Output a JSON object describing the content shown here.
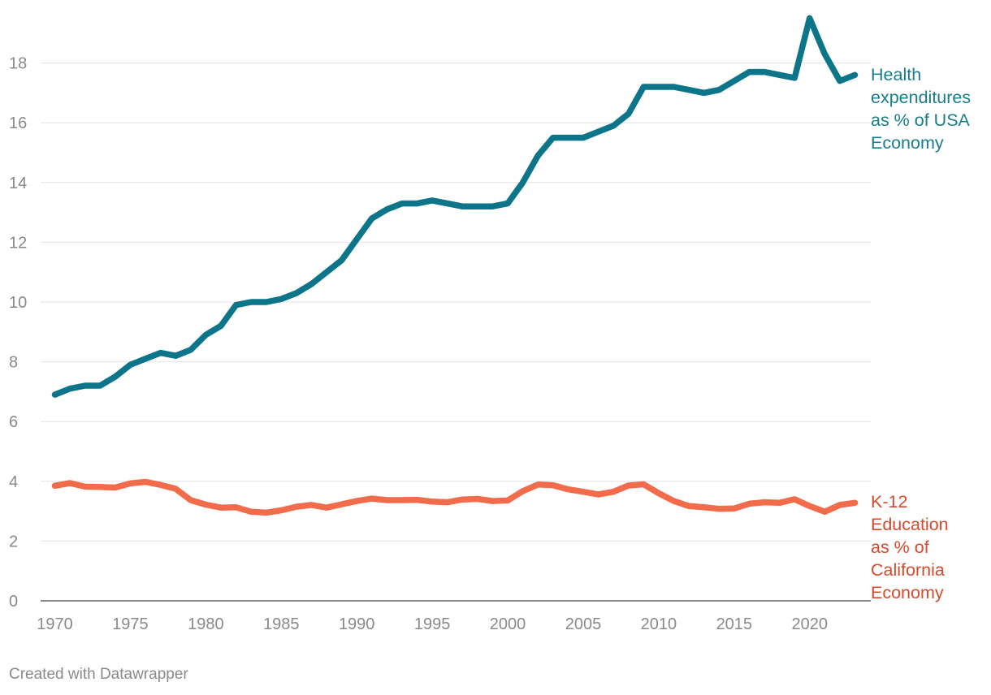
{
  "chart_data": {
    "type": "line",
    "title": "",
    "xlabel": "",
    "ylabel": "",
    "xlim": [
      1970,
      2023
    ],
    "ylim": [
      0,
      19.5
    ],
    "grid": true,
    "legend": "direct labels at right end of each line",
    "y_ticks": [
      0,
      2,
      4,
      6,
      8,
      10,
      12,
      14,
      16,
      18
    ],
    "x_ticks": [
      1970,
      1975,
      1980,
      1985,
      1990,
      1995,
      2000,
      2005,
      2010,
      2015,
      2020
    ],
    "x": [
      1970,
      1971,
      1972,
      1973,
      1974,
      1975,
      1976,
      1977,
      1978,
      1979,
      1980,
      1981,
      1982,
      1983,
      1984,
      1985,
      1986,
      1987,
      1988,
      1989,
      1990,
      1991,
      1992,
      1993,
      1994,
      1995,
      1996,
      1997,
      1998,
      1999,
      2000,
      2001,
      2002,
      2003,
      2004,
      2005,
      2006,
      2007,
      2008,
      2009,
      2010,
      2011,
      2012,
      2013,
      2014,
      2015,
      2016,
      2017,
      2018,
      2019,
      2020,
      2021,
      2022,
      2023
    ],
    "series": [
      {
        "name": "health",
        "label_lines": [
          "Health",
          "expenditures",
          "as % of USA",
          "Economy"
        ],
        "color": "#0c7589",
        "label_color": "#1a7d8e",
        "values": [
          6.9,
          7.1,
          7.2,
          7.2,
          7.5,
          7.9,
          8.1,
          8.3,
          8.2,
          8.4,
          8.9,
          9.2,
          9.9,
          10.0,
          10.0,
          10.1,
          10.3,
          10.6,
          11.0,
          11.4,
          12.1,
          12.8,
          13.1,
          13.3,
          13.3,
          13.4,
          13.3,
          13.2,
          13.2,
          13.2,
          13.3,
          14.0,
          14.9,
          15.5,
          15.5,
          15.5,
          15.7,
          15.9,
          16.3,
          17.2,
          17.2,
          17.2,
          17.1,
          17.0,
          17.1,
          17.4,
          17.7,
          17.7,
          17.6,
          17.5,
          19.5,
          18.3,
          17.4,
          17.6
        ]
      },
      {
        "name": "k12",
        "label_lines": [
          "K-12",
          "Education",
          "as % of",
          "California",
          "Economy"
        ],
        "color": "#f26b4b",
        "label_color": "#d84a2b",
        "values": [
          3.85,
          3.94,
          3.82,
          3.81,
          3.79,
          3.93,
          3.98,
          3.88,
          3.75,
          3.37,
          3.22,
          3.12,
          3.13,
          2.98,
          2.95,
          3.03,
          3.15,
          3.21,
          3.12,
          3.23,
          3.34,
          3.42,
          3.37,
          3.37,
          3.38,
          3.32,
          3.3,
          3.39,
          3.41,
          3.34,
          3.36,
          3.67,
          3.89,
          3.87,
          3.73,
          3.65,
          3.56,
          3.65,
          3.86,
          3.9,
          3.6,
          3.34,
          3.17,
          3.13,
          3.08,
          3.09,
          3.25,
          3.3,
          3.28,
          3.4,
          3.17,
          2.98,
          3.21,
          3.28
        ]
      }
    ]
  },
  "footer": {
    "credit": "Created with Datawrapper"
  }
}
